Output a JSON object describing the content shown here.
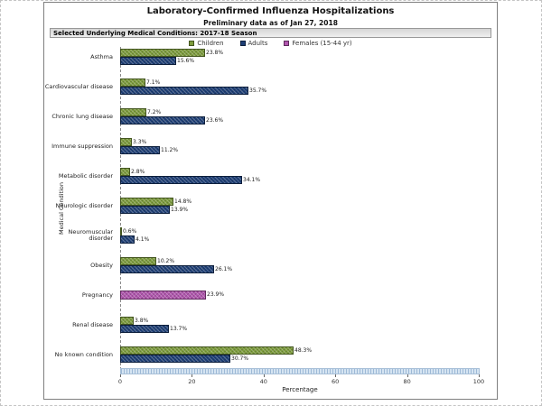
{
  "window": {
    "title": "Laboratory-Confirmed Influenza Hospitalizations",
    "subtitle": "Preliminary data as of Jan 27, 2018",
    "section_header": "Selected Underlying Medical Conditions: 2017-18 Season"
  },
  "chart_data": {
    "type": "bar",
    "orientation": "horizontal",
    "title": "Laboratory-Confirmed Influenza Hospitalizations",
    "subtitle": "Preliminary data as of Jan 27, 2018",
    "xlabel": "Percentage",
    "ylabel": "Medical Condition",
    "xlim": [
      0,
      100
    ],
    "xticks": [
      0,
      20,
      40,
      60,
      80,
      100
    ],
    "grid": false,
    "legend_position": "top",
    "value_label_format": "{value}%",
    "categories": [
      "Asthma",
      "Cardiovascular disease",
      "Chronic lung disease",
      "Immune suppression",
      "Metabolic disorder",
      "Neurologic disorder",
      "Neuromuscular disorder",
      "Obesity",
      "Pregnancy",
      "Renal disease",
      "No known condition"
    ],
    "series": [
      {
        "name": "Children",
        "key": "children",
        "color": "#7d9c3c",
        "border": "#43551f",
        "values": [
          23.8,
          7.1,
          7.2,
          3.3,
          2.8,
          14.8,
          0.6,
          10.2,
          null,
          3.8,
          48.3
        ]
      },
      {
        "name": "Adults",
        "key": "adults",
        "color": "#1e3f76",
        "border": "#0d1f3c",
        "values": [
          15.6,
          35.7,
          23.6,
          11.2,
          34.1,
          13.9,
          4.1,
          26.1,
          null,
          13.7,
          30.7
        ]
      },
      {
        "name": "Females (15-44 yr)",
        "key": "females-15-44",
        "color": "#b156ae",
        "border": "#5e2a5c",
        "values": [
          null,
          null,
          null,
          null,
          null,
          null,
          null,
          null,
          23.9,
          null,
          null
        ]
      }
    ]
  }
}
